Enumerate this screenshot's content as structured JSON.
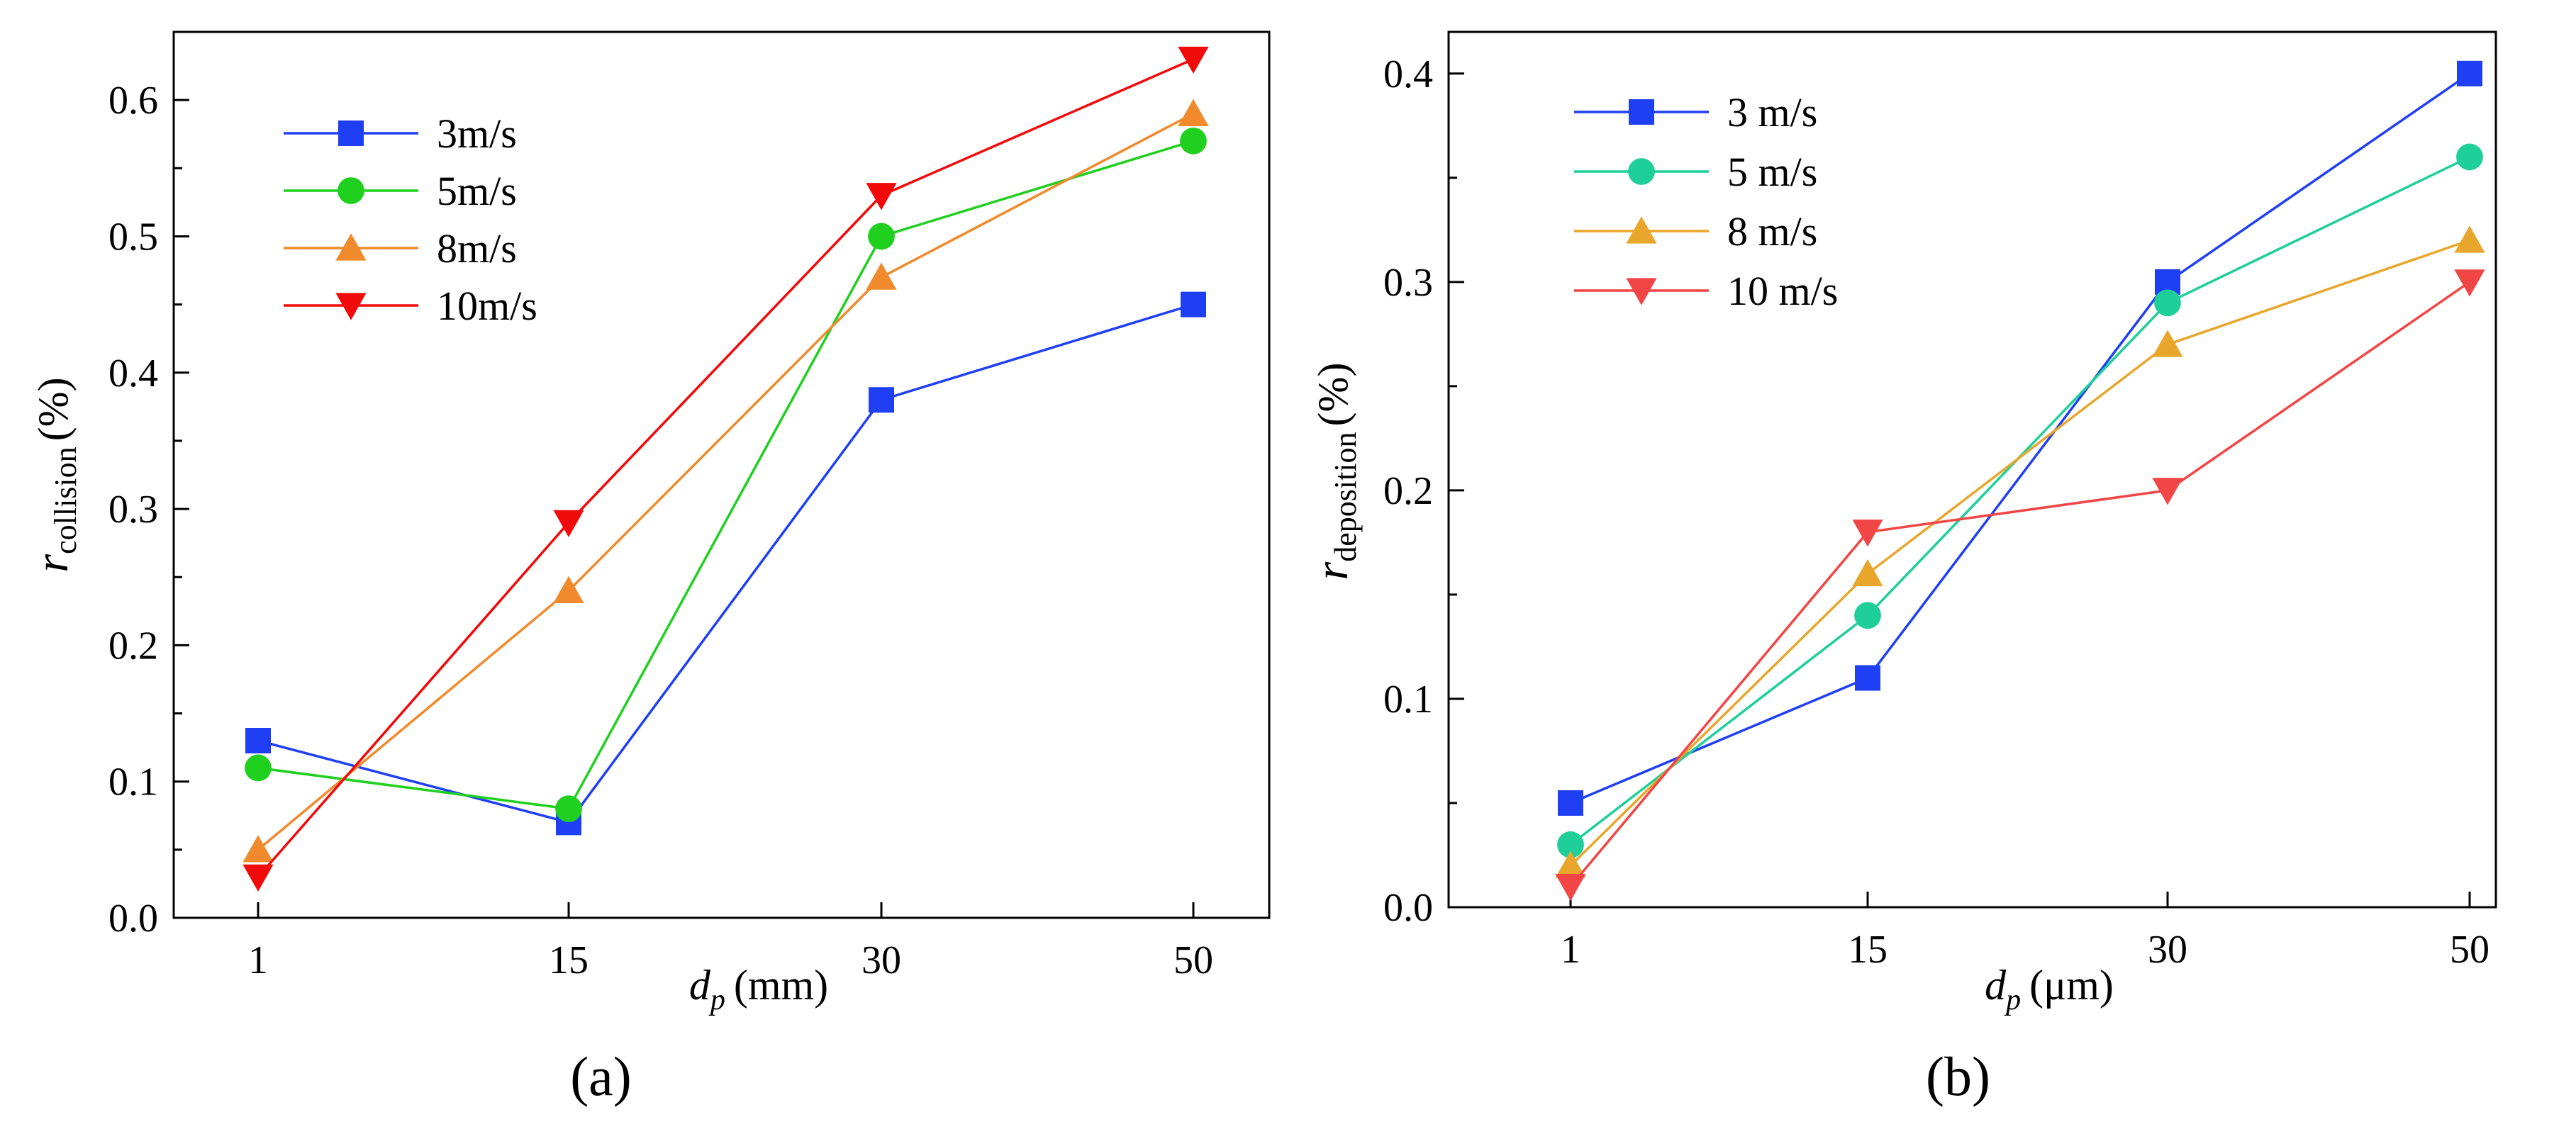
{
  "chart_data": [
    {
      "type": "line",
      "panel_label": "(a)",
      "categories": [
        "1",
        "15",
        "30",
        "50"
      ],
      "xlabel": {
        "var": "d",
        "sub": "p",
        "unit": "(mm)"
      },
      "ylabel": {
        "var": "r",
        "sub": "collision",
        "unit": "(%)"
      },
      "ylim": [
        0,
        0.65
      ],
      "yticks": [
        "0.0",
        "0.1",
        "0.2",
        "0.3",
        "0.4",
        "0.5",
        "0.6"
      ],
      "legend_position": "top-left",
      "series": [
        {
          "name": "3m/s",
          "color": "#1f3ff5",
          "marker": "square",
          "values": [
            0.13,
            0.07,
            0.38,
            0.45
          ]
        },
        {
          "name": "5m/s",
          "color": "#1fd01f",
          "marker": "circle",
          "values": [
            0.11,
            0.08,
            0.5,
            0.57
          ]
        },
        {
          "name": "8m/s",
          "color": "#f08a2c",
          "marker": "triangle-up",
          "values": [
            0.05,
            0.24,
            0.47,
            0.59
          ]
        },
        {
          "name": "10m/s",
          "color": "#f00a0a",
          "marker": "triangle-down",
          "values": [
            0.03,
            0.29,
            0.53,
            0.63
          ]
        }
      ]
    },
    {
      "type": "line",
      "panel_label": "(b)",
      "categories": [
        "1",
        "15",
        "30",
        "50"
      ],
      "xlabel": {
        "var": "d",
        "sub": "p",
        "unit": "(μm)"
      },
      "ylabel": {
        "var": "r",
        "sub": "deposition",
        "unit": "(%)"
      },
      "ylim": [
        0,
        0.42
      ],
      "yticks": [
        "0.0",
        "0.1",
        "0.2",
        "0.3",
        "0.4"
      ],
      "legend_position": "top-left",
      "series": [
        {
          "name": "3 m/s",
          "color": "#1f3ff5",
          "marker": "square",
          "values": [
            0.05,
            0.11,
            0.3,
            0.4
          ]
        },
        {
          "name": "5 m/s",
          "color": "#1fcf9a",
          "marker": "circle",
          "values": [
            0.03,
            0.14,
            0.29,
            0.36
          ]
        },
        {
          "name": "8 m/s",
          "color": "#e8a62c",
          "marker": "triangle-up",
          "values": [
            0.02,
            0.16,
            0.27,
            0.32
          ]
        },
        {
          "name": "10 m/s",
          "color": "#f24545",
          "marker": "triangle-down",
          "values": [
            0.01,
            0.18,
            0.2,
            0.3
          ]
        }
      ]
    }
  ]
}
